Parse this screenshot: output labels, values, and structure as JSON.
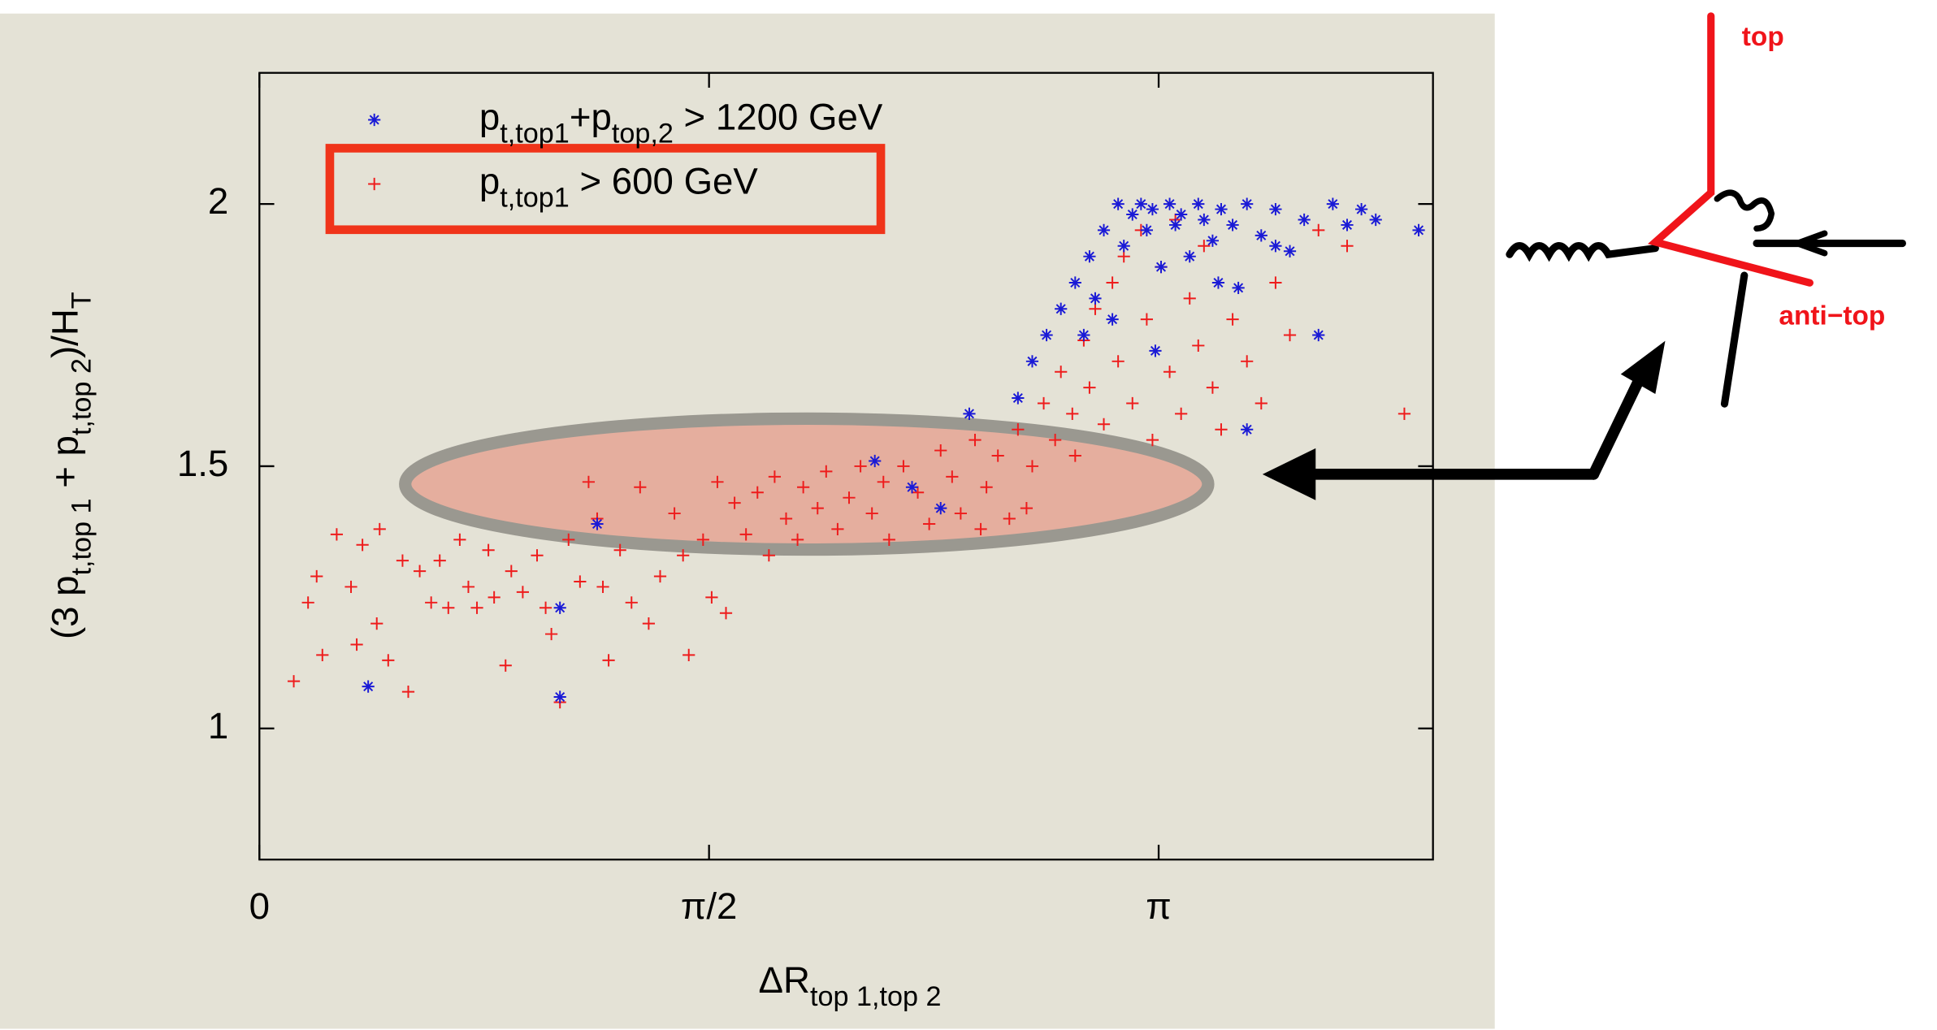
{
  "chart_data": {
    "type": "scatter",
    "xlabel_parts": [
      "ΔR",
      "top 1,top 2"
    ],
    "ylabel_parts": [
      "(3 p",
      "t,top 1",
      " + p",
      "t,top 2",
      ")/H",
      "T"
    ],
    "xlim": [
      0,
      4.1
    ],
    "ylim": [
      0.75,
      2.25
    ],
    "xticks": [
      0,
      {
        "value": 1.5708,
        "label": "π/2"
      },
      {
        "value": 3.1416,
        "label": "π"
      }
    ],
    "yticks": [
      1,
      1.5,
      2
    ],
    "annotations": [
      "top",
      "anti−top"
    ],
    "series": [
      {
        "name": [
          "p",
          "t,top1",
          "+p",
          "top,2",
          " > 1200 GeV"
        ],
        "color": "#1a1ad6",
        "marker": "star",
        "x": [
          0.38,
          1.05,
          1.05,
          1.18,
          2.15,
          2.28,
          2.38,
          2.48,
          2.65,
          2.7,
          2.75,
          2.8,
          2.85,
          2.9,
          2.95,
          3.0,
          3.02,
          3.05,
          3.08,
          3.1,
          3.12,
          3.15,
          3.18,
          3.2,
          3.22,
          3.25,
          3.28,
          3.3,
          3.33,
          3.36,
          3.4,
          3.45,
          3.5,
          3.55,
          3.6,
          3.65,
          3.7,
          3.75,
          3.8,
          3.85,
          3.9,
          4.05,
          3.45,
          3.35,
          2.88,
          2.92,
          2.98,
          3.13,
          3.42,
          3.55
        ],
        "values": [
          1.08,
          1.06,
          1.23,
          1.39,
          1.51,
          1.46,
          1.42,
          1.6,
          1.63,
          1.7,
          1.75,
          1.8,
          1.85,
          1.9,
          1.95,
          2.0,
          1.92,
          1.98,
          2.0,
          1.95,
          1.99,
          1.88,
          2.0,
          1.96,
          1.98,
          1.9,
          2.0,
          1.97,
          1.93,
          1.99,
          1.96,
          2.0,
          1.94,
          1.99,
          1.91,
          1.97,
          1.75,
          2.0,
          1.96,
          1.99,
          1.97,
          1.95,
          1.57,
          1.85,
          1.75,
          1.82,
          1.78,
          1.72,
          1.84,
          1.92
        ]
      },
      {
        "name": [
          "p",
          "t,top1",
          " > 600 GeV"
        ],
        "color": "#ee1c1c",
        "marker": "plus",
        "x": [
          0.12,
          0.17,
          0.2,
          0.22,
          0.27,
          0.32,
          0.34,
          0.36,
          0.41,
          0.42,
          0.45,
          0.5,
          0.52,
          0.56,
          0.6,
          0.63,
          0.66,
          0.7,
          0.73,
          0.76,
          0.8,
          0.82,
          0.86,
          0.88,
          0.92,
          0.97,
          1.0,
          1.02,
          1.05,
          1.08,
          1.12,
          1.15,
          1.18,
          1.2,
          1.22,
          1.26,
          1.3,
          1.33,
          1.36,
          1.4,
          1.45,
          1.48,
          1.5,
          1.55,
          1.58,
          1.6,
          1.63,
          1.66,
          1.7,
          1.74,
          1.78,
          1.8,
          1.84,
          1.88,
          1.9,
          1.95,
          1.98,
          2.02,
          2.06,
          2.1,
          2.14,
          2.18,
          2.2,
          2.25,
          2.3,
          2.34,
          2.38,
          2.42,
          2.45,
          2.5,
          2.54,
          2.58,
          2.62,
          2.65,
          2.7,
          2.74,
          2.78,
          2.8,
          2.84,
          2.88,
          2.9,
          2.92,
          2.95,
          2.98,
          3.0,
          3.02,
          3.05,
          3.08,
          3.1,
          3.12,
          3.15,
          3.18,
          3.2,
          3.22,
          3.25,
          3.28,
          3.3,
          3.33,
          3.36,
          3.4,
          3.45,
          3.5,
          3.55,
          3.6,
          3.7,
          3.8,
          4.0,
          2.68,
          2.52,
          2.85
        ],
        "values": [
          1.09,
          1.24,
          1.29,
          1.14,
          1.37,
          1.27,
          1.16,
          1.35,
          1.2,
          1.38,
          1.13,
          1.32,
          1.07,
          1.3,
          1.24,
          1.32,
          1.23,
          1.36,
          1.27,
          1.23,
          1.34,
          1.25,
          1.12,
          1.3,
          1.26,
          1.33,
          1.23,
          1.18,
          1.05,
          1.36,
          1.28,
          1.47,
          1.4,
          1.27,
          1.13,
          1.34,
          1.24,
          1.46,
          1.2,
          1.29,
          1.41,
          1.33,
          1.14,
          1.36,
          1.25,
          1.47,
          1.22,
          1.43,
          1.37,
          1.45,
          1.33,
          1.48,
          1.4,
          1.36,
          1.46,
          1.42,
          1.49,
          1.38,
          1.44,
          1.5,
          1.41,
          1.47,
          1.36,
          1.5,
          1.45,
          1.39,
          1.53,
          1.48,
          1.41,
          1.55,
          1.46,
          1.52,
          1.4,
          1.57,
          1.5,
          1.62,
          1.55,
          1.68,
          1.6,
          1.74,
          1.65,
          1.8,
          1.58,
          1.85,
          1.7,
          1.9,
          1.62,
          1.95,
          1.78,
          1.55,
          1.88,
          1.68,
          1.97,
          1.6,
          1.82,
          1.73,
          1.92,
          1.65,
          1.57,
          1.78,
          1.7,
          1.62,
          1.85,
          1.75,
          1.95,
          1.92,
          1.6,
          1.42,
          1.38,
          1.52
        ]
      }
    ]
  }
}
